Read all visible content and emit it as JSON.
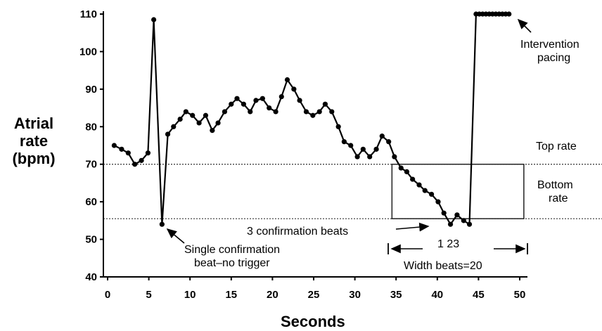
{
  "chart_data": {
    "type": "line",
    "title": "",
    "xlabel": "Seconds",
    "ylabel": [
      "Atrial",
      "rate",
      "(bpm)"
    ],
    "xlim": [
      0,
      50
    ],
    "ylim": [
      40,
      110
    ],
    "xticks": [
      0,
      5,
      10,
      15,
      20,
      25,
      30,
      35,
      40,
      45,
      50
    ],
    "yticks": [
      40,
      50,
      60,
      70,
      80,
      90,
      100,
      110
    ],
    "grid": false,
    "series": [
      {
        "x": [
          0.8,
          1.7,
          2.5,
          3.3,
          4.1,
          4.9,
          5.6,
          6.6,
          7.3,
          8.0,
          8.8,
          9.5,
          10.3,
          11.1,
          11.9,
          12.7,
          13.4,
          14.2,
          15.0,
          15.7,
          16.5,
          17.3,
          18.0,
          18.8,
          19.6,
          20.4,
          21.1,
          21.8,
          22.6,
          23.3,
          24.1,
          24.9,
          25.7,
          26.4,
          27.2,
          28.0,
          28.7,
          29.5,
          30.3,
          31.0,
          31.8,
          32.6,
          33.3,
          34.1,
          34.8,
          35.6,
          36.3,
          37.0,
          37.8,
          38.5,
          39.3,
          40.1,
          40.8,
          41.6,
          42.4,
          43.2,
          43.9,
          44.7,
          45.1,
          45.5,
          45.9,
          46.3,
          46.7,
          47.1,
          47.5,
          47.9,
          48.3,
          48.7
        ],
        "y": [
          75,
          74,
          73,
          70,
          71,
          73,
          108.5,
          54,
          78,
          80,
          82,
          84,
          83,
          81,
          83,
          79,
          81,
          84,
          86,
          87.5,
          86,
          84,
          87,
          87.5,
          85,
          84,
          88,
          92.5,
          90,
          87,
          84,
          83,
          84,
          86,
          84,
          80,
          76,
          75,
          72,
          74,
          72,
          74,
          77.5,
          76,
          72,
          69,
          68,
          66,
          64.5,
          63,
          62,
          60,
          57,
          54,
          56.5,
          55,
          54,
          110,
          110,
          110,
          110,
          110,
          110,
          110,
          110,
          110,
          110,
          110
        ]
      }
    ],
    "reference_lines": [
      {
        "y": 70,
        "style": "dotted"
      },
      {
        "y": 55.5,
        "style": "dotted"
      }
    ],
    "box": {
      "x": [
        34.5,
        50.5
      ],
      "y": [
        55.5,
        70
      ]
    },
    "annotations": {
      "intervention": [
        "Intervention",
        "pacing"
      ],
      "top_rate": "Top rate",
      "bottom_rate": [
        "Bottom",
        "rate"
      ],
      "three_confirm": "3 confirmation beats",
      "confirm_nums": "1  23",
      "single_confirm": [
        "Single confirmation",
        "beat–no trigger"
      ],
      "width_beats": "Width beats=20"
    }
  }
}
